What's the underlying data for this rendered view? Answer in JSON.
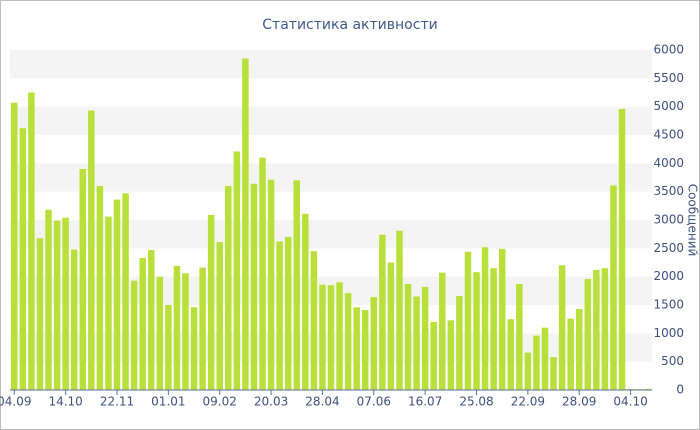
{
  "chart_data": {
    "type": "bar",
    "title": "Статистика активности",
    "y_label": "Сообщений",
    "categories": [
      "04.09",
      null,
      null,
      null,
      null,
      null,
      "14.10",
      null,
      null,
      null,
      null,
      null,
      "22.11",
      null,
      null,
      null,
      null,
      null,
      "01.01",
      null,
      null,
      null,
      null,
      null,
      "09.02",
      null,
      null,
      null,
      null,
      null,
      "20.03",
      null,
      null,
      null,
      null,
      null,
      "28.04",
      null,
      null,
      null,
      null,
      null,
      "07.06",
      null,
      null,
      null,
      null,
      null,
      "16.07",
      null,
      null,
      null,
      null,
      null,
      "25.08",
      null,
      null,
      null,
      null,
      null,
      "22.09",
      null,
      null,
      null,
      null,
      null,
      "28.09",
      null,
      null,
      null,
      null,
      null,
      "04.10",
      null,
      null
    ],
    "values": [
      5070,
      4620,
      5250,
      2680,
      3180,
      2990,
      3040,
      2480,
      3900,
      4930,
      3600,
      3060,
      3360,
      3470,
      1930,
      2330,
      2470,
      2000,
      1500,
      2190,
      2060,
      1460,
      2160,
      3090,
      2610,
      3600,
      4210,
      5850,
      3640,
      4100,
      3710,
      2620,
      2700,
      3700,
      3110,
      2450,
      1860,
      1850,
      1900,
      1710,
      1460,
      1410,
      1640,
      2740,
      2250,
      2810,
      1870,
      1650,
      1820,
      1200,
      2070,
      1230,
      1660,
      2440,
      2080,
      2520,
      2150,
      2490,
      1250,
      1870,
      660,
      960,
      1100,
      580,
      2200,
      1260,
      1430,
      1960,
      2120,
      2150,
      3610,
      4960,
      20,
      15,
      20
    ],
    "color": "#b9e03a",
    "ylim": [
      0,
      6000
    ],
    "yticks": [
      0,
      500,
      1000,
      1500,
      2000,
      2500,
      3000,
      3500,
      4000,
      4500,
      5000,
      5500,
      6000
    ],
    "grid_bands": true,
    "y_axis_side": "right"
  }
}
